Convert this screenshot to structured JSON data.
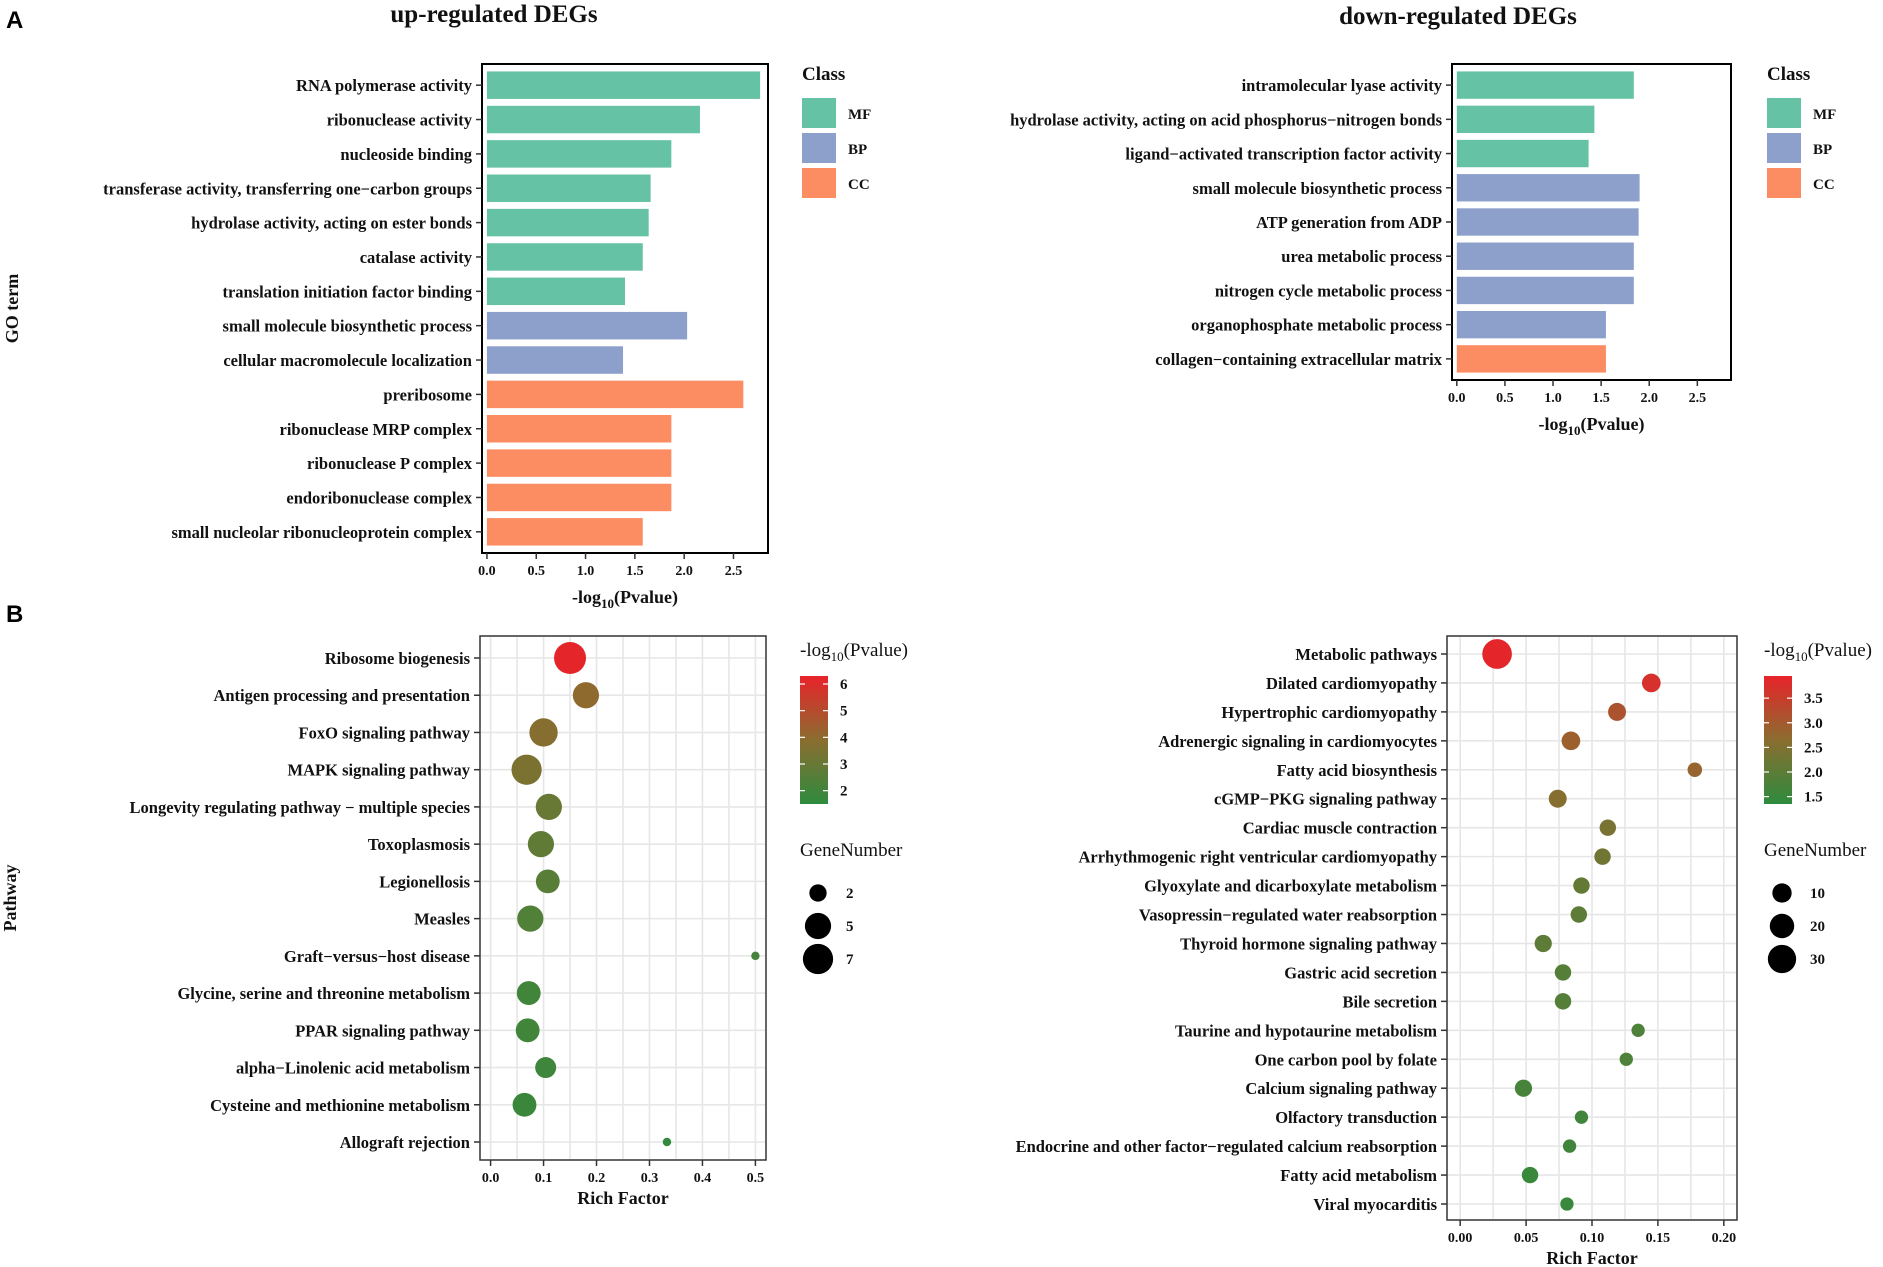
{
  "panels": {
    "a_label": "A",
    "b_label": "B"
  },
  "bar_legend": {
    "title": "Class",
    "items": [
      {
        "label": "MF",
        "color": "#66c2a5"
      },
      {
        "label": "BP",
        "color": "#8da0cb"
      },
      {
        "label": "CC",
        "color": "#fc8d62"
      }
    ]
  },
  "dot_legend": {
    "color_title_prefix": "-log",
    "color_title_sub": "10",
    "color_title_suffix": "(Pvalue)",
    "size_title": "GeneNumber",
    "color_low": "#2e8b3e",
    "color_mid": "#8a6d2f",
    "color_high": "#e8232b"
  },
  "chart_data": [
    {
      "type": "bar",
      "orientation": "horizontal",
      "title": "up-regulated DEGs",
      "ylabel": "GO term",
      "xlabel": {
        "prefix": "-log",
        "sub": "10",
        "suffix": "(Pvalue)"
      },
      "xlim": [
        -0.05,
        2.85
      ],
      "xticks": [
        "0.0",
        "0.5",
        "1.0",
        "1.5",
        "2.0",
        "2.5"
      ],
      "categories": [
        "RNA polymerase activity",
        "ribonuclease activity",
        "nucleoside binding",
        "transferase activity, transferring one−carbon groups",
        "hydrolase activity, acting on ester bonds",
        "catalase activity",
        "translation initiation factor binding",
        "small molecule biosynthetic process",
        "cellular macromolecule localization",
        "preribosome",
        "ribonuclease MRP complex",
        "ribonuclease P complex",
        "endoribonuclease complex",
        "small nucleolar ribonucleoprotein complex"
      ],
      "values": [
        2.77,
        2.16,
        1.87,
        1.66,
        1.64,
        1.58,
        1.4,
        2.03,
        1.38,
        2.6,
        1.87,
        1.87,
        1.87,
        1.58
      ],
      "classes": [
        "MF",
        "MF",
        "MF",
        "MF",
        "MF",
        "MF",
        "MF",
        "BP",
        "BP",
        "CC",
        "CC",
        "CC",
        "CC",
        "CC"
      ]
    },
    {
      "type": "bar",
      "orientation": "horizontal",
      "title": "down-regulated DEGs",
      "ylabel": "",
      "xlabel": {
        "prefix": "-log",
        "sub": "10",
        "suffix": "(Pvalue)"
      },
      "xlim": [
        -0.05,
        2.85
      ],
      "xticks": [
        "0.0",
        "0.5",
        "1.0",
        "1.5",
        "2.0",
        "2.5"
      ],
      "categories": [
        "intramolecular lyase activity",
        "hydrolase activity, acting on acid phosphorus−nitrogen bonds",
        "ligand−activated transcription factor activity",
        "small molecule biosynthetic process",
        "ATP generation from ADP",
        "urea metabolic process",
        "nitrogen cycle metabolic process",
        "organophosphate metabolic process",
        "collagen−containing extracellular matrix"
      ],
      "values": [
        1.84,
        1.43,
        1.37,
        1.9,
        1.89,
        1.84,
        1.84,
        1.55,
        1.55
      ],
      "classes": [
        "MF",
        "MF",
        "MF",
        "BP",
        "BP",
        "BP",
        "BP",
        "BP",
        "CC"
      ]
    },
    {
      "type": "scatter",
      "subtype": "bubble",
      "title": "",
      "ylabel": "Pathway",
      "xlabel": "Rich Factor",
      "xlim": [
        -0.02,
        0.52
      ],
      "xticks": [
        "0.0",
        "0.1",
        "0.2",
        "0.3",
        "0.4",
        "0.5"
      ],
      "color_ticks": [
        "6",
        "5",
        "4",
        "3",
        "2"
      ],
      "color_range": [
        1.5,
        6.3
      ],
      "size_ticks": [
        "2",
        "5",
        "7"
      ],
      "size_range": [
        1,
        8
      ],
      "categories": [
        "Ribosome biogenesis",
        "Antigen processing and presentation",
        "FoxO signaling pathway",
        "MAPK signaling pathway",
        "Longevity regulating pathway − multiple species",
        "Toxoplasmosis",
        "Legionellosis",
        "Measles",
        "Graft−versus−host disease",
        "Glycine, serine and threonine metabolism",
        "PPAR signaling pathway",
        "alpha−Linolenic acid metabolism",
        "Cysteine and methionine metabolism",
        "Allograft rejection"
      ],
      "rich_factor": [
        0.15,
        0.18,
        0.1,
        0.068,
        0.11,
        0.095,
        0.108,
        0.075,
        0.5,
        0.072,
        0.07,
        0.104,
        0.064,
        0.333
      ],
      "gene_number": [
        8,
        5,
        6,
        7,
        5,
        5,
        4,
        5,
        1,
        4,
        4,
        3,
        4,
        1
      ],
      "neg_log10_p": [
        6.2,
        4.0,
        3.8,
        3.5,
        3.0,
        2.8,
        2.6,
        2.4,
        2.1,
        2.0,
        2.0,
        1.9,
        1.8,
        1.6
      ]
    },
    {
      "type": "scatter",
      "subtype": "bubble",
      "title": "",
      "ylabel": "",
      "xlabel": "Rich Factor",
      "xlim": [
        -0.01,
        0.21
      ],
      "xticks": [
        "0.00",
        "0.05",
        "0.10",
        "0.15",
        "0.20"
      ],
      "color_ticks": [
        "3.5",
        "3.0",
        "2.5",
        "2.0",
        "1.5"
      ],
      "color_range": [
        1.35,
        3.95
      ],
      "size_ticks": [
        "10",
        "20",
        "30"
      ],
      "size_range": [
        1,
        35
      ],
      "categories": [
        "Metabolic pathways",
        "Dilated cardiomyopathy",
        "Hypertrophic cardiomyopathy",
        "Adrenergic signaling in cardiomyocytes",
        "Fatty acid biosynthesis",
        "cGMP−PKG signaling pathway",
        "Cardiac muscle contraction",
        "Arrhythmogenic right ventricular cardiomyopathy",
        "Glyoxylate and dicarboxylate metabolism",
        "Vasopressin−regulated water reabsorption",
        "Thyroid hormone signaling pathway",
        "Gastric acid secretion",
        "Bile secretion",
        "Taurine and hypotaurine metabolism",
        "One carbon pool by folate",
        "Calcium signaling pathway",
        "Olfactory transduction",
        "Endocrine and other factor−regulated calcium reabsorption",
        "Fatty acid metabolism",
        "Viral myocarditis"
      ],
      "rich_factor": [
        0.028,
        0.145,
        0.119,
        0.084,
        0.178,
        0.074,
        0.112,
        0.108,
        0.092,
        0.09,
        0.063,
        0.078,
        0.078,
        0.135,
        0.126,
        0.048,
        0.092,
        0.083,
        0.053,
        0.081
      ],
      "gene_number": [
        34,
        9,
        8,
        9,
        4,
        8,
        6,
        6,
        6,
        6,
        7,
        6,
        6,
        3,
        3,
        7,
        3,
        3,
        6,
        3
      ],
      "neg_log10_p": [
        3.9,
        3.7,
        3.1,
        2.9,
        2.8,
        2.6,
        2.4,
        2.3,
        2.1,
        2.0,
        2.0,
        1.9,
        1.9,
        1.8,
        1.8,
        1.7,
        1.6,
        1.6,
        1.5,
        1.5
      ]
    }
  ]
}
